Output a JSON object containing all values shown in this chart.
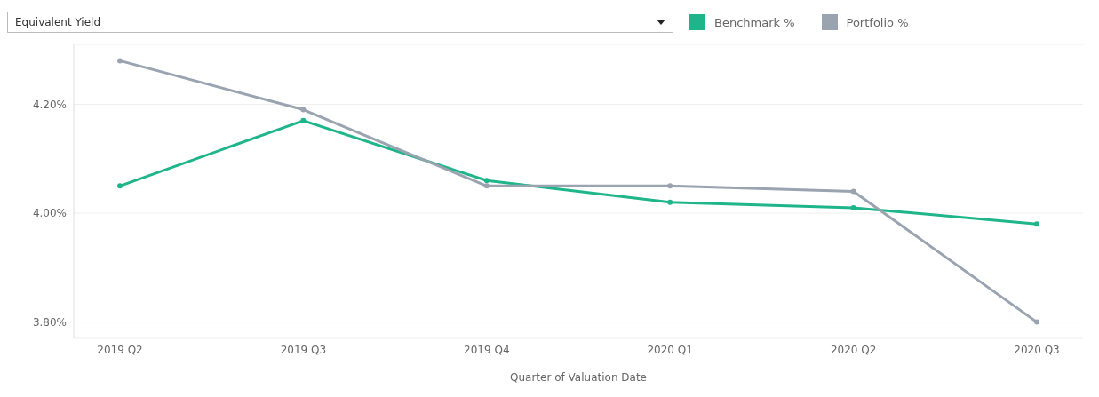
{
  "chart_data": {
    "type": "line",
    "title": "Equivalent Yield",
    "xlabel": "Quarter of Valuation Date",
    "categories": [
      "2019 Q2",
      "2019 Q3",
      "2019 Q4",
      "2020 Q1",
      "2020 Q2",
      "2020 Q3"
    ],
    "series": [
      {
        "name": "Benchmark %",
        "color": "#1fb58a",
        "values": [
          4.05,
          4.17,
          4.06,
          4.02,
          4.01,
          3.98
        ]
      },
      {
        "name": "Portfolio %",
        "color": "#9aa3b0",
        "values": [
          4.28,
          4.19,
          4.05,
          4.05,
          4.04,
          3.8
        ]
      }
    ],
    "ylim": [
      3.77,
      4.31
    ],
    "yticks": [
      {
        "value": 3.8,
        "label": "3.80%"
      },
      {
        "value": 4.0,
        "label": "4.00%"
      },
      {
        "value": 4.2,
        "label": "4.20%"
      }
    ],
    "grid": "y",
    "legend": "top right",
    "marker": "circle",
    "line_style": "solid"
  }
}
